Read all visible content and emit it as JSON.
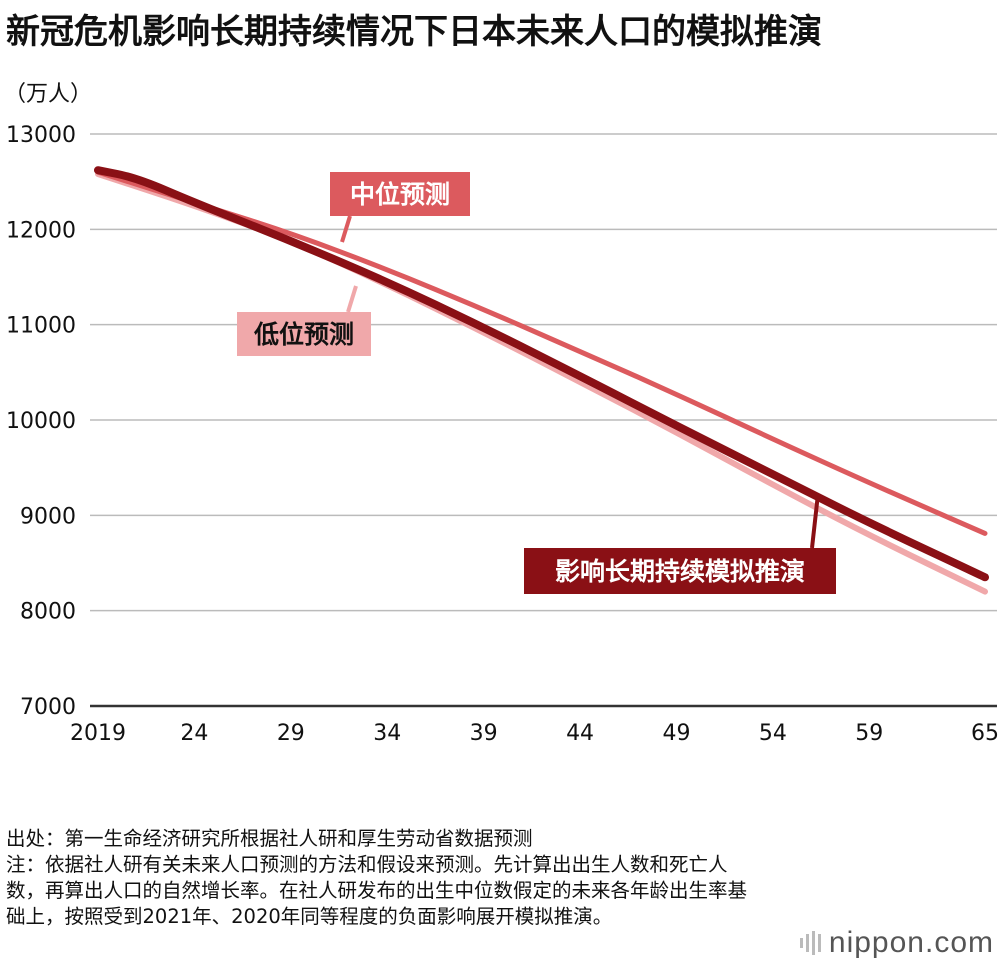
{
  "title": "新冠危机影响长期持续情况下日本未来人口的模拟推演",
  "unit": "（万人）",
  "chart_data": {
    "type": "line",
    "title": "新冠危机影响长期持续情况下日本未来人口的模拟推演",
    "ylabel": "（万人）",
    "xlabel": "",
    "ylim": [
      7000,
      13000
    ],
    "xlim": [
      2019,
      2065
    ],
    "yticks": [
      7000,
      8000,
      9000,
      10000,
      11000,
      12000,
      13000
    ],
    "xticks": [
      {
        "value": 2019,
        "label": "2019"
      },
      {
        "value": 2024,
        "label": "24"
      },
      {
        "value": 2029,
        "label": "29"
      },
      {
        "value": 2034,
        "label": "34"
      },
      {
        "value": 2039,
        "label": "39"
      },
      {
        "value": 2044,
        "label": "44"
      },
      {
        "value": 2049,
        "label": "49"
      },
      {
        "value": 2054,
        "label": "54"
      },
      {
        "value": 2059,
        "label": "59"
      },
      {
        "value": 2065,
        "label": "65"
      }
    ],
    "grid": true,
    "series": [
      {
        "name": "低位预测",
        "color": "#f0a8aa",
        "x": [
          2019,
          2024,
          2029,
          2034,
          2039,
          2044,
          2049,
          2054,
          2059,
          2065
        ],
        "values": [
          12580,
          12250,
          11880,
          11420,
          10920,
          10400,
          9870,
          9320,
          8790,
          8200
        ]
      },
      {
        "name": "中位预测",
        "color": "#dc5a5e",
        "x": [
          2019,
          2024,
          2029,
          2034,
          2039,
          2044,
          2049,
          2054,
          2059,
          2065
        ],
        "values": [
          12600,
          12280,
          11960,
          11580,
          11160,
          10720,
          10270,
          9800,
          9340,
          8810
        ]
      },
      {
        "name": "影响长期持续模拟推演",
        "color": "#8a1015",
        "x": [
          2019,
          2021,
          2024,
          2029,
          2034,
          2039,
          2044,
          2049,
          2054,
          2059,
          2065
        ],
        "values": [
          12620,
          12540,
          12280,
          11880,
          11450,
          10970,
          10460,
          9940,
          9430,
          8920,
          8350
        ]
      }
    ]
  },
  "notes": [
    "出处：第一生命经济研究所根据社人研和厚生劳动省数据预测",
    "注：依据社人研有关未来人口预测的方法和假设来预测。先计算出出生人数和死亡人数，再算出人口的自然增长率。在社人研发布的出生中位数假定的未来各年龄出生率基础上，按照受到2021年、2020年同等程度的负面影响展开模拟推演。"
  ],
  "brand": "nippon.com"
}
